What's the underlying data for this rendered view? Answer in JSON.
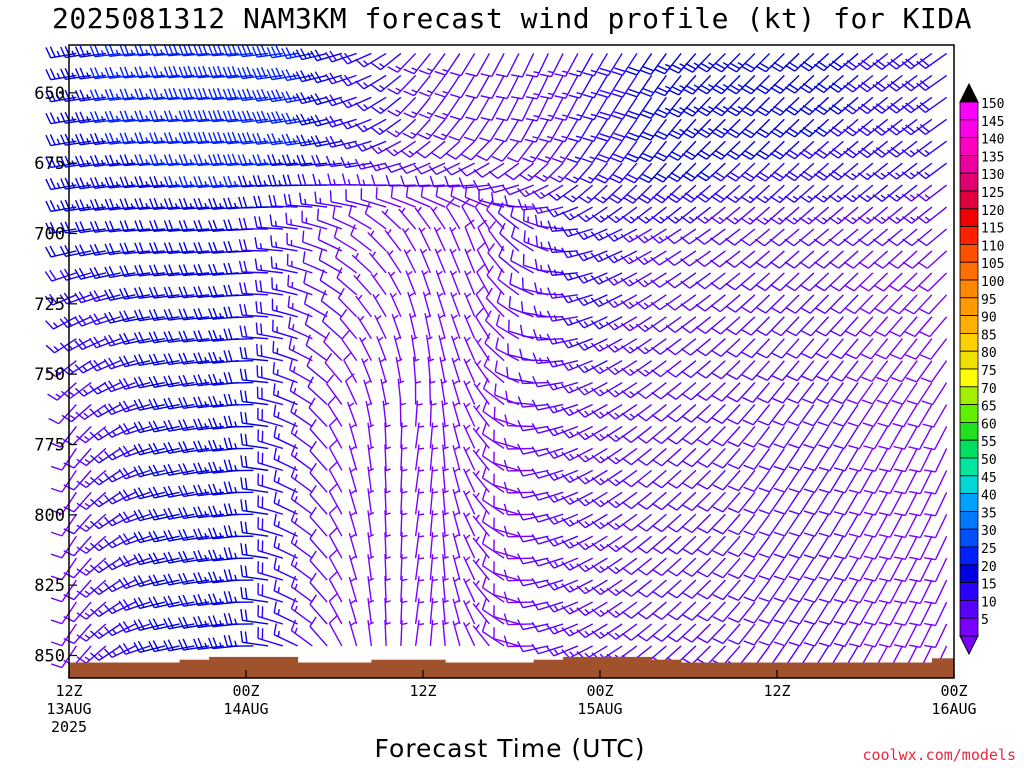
{
  "title": "2025081312 NAM3KM forecast wind profile (kt) for KIDA",
  "credit": "coolwx.com/models",
  "chart_data": {
    "type": "wind-barb profile (time-height)",
    "title": "2025081312 NAM3KM forecast wind profile (kt) for KIDA",
    "xlabel": "Forecast Time (UTC)",
    "ylabel": "",
    "x_ticks": [
      {
        "hour": 0,
        "lines": [
          "12Z",
          "13AUG",
          "2025"
        ]
      },
      {
        "hour": 12,
        "lines": [
          "00Z",
          "14AUG"
        ]
      },
      {
        "hour": 24,
        "lines": [
          "12Z"
        ]
      },
      {
        "hour": 36,
        "lines": [
          "00Z",
          "15AUG"
        ]
      },
      {
        "hour": 48,
        "lines": [
          "12Z"
        ]
      },
      {
        "hour": 60,
        "lines": [
          "00Z",
          "16AUG"
        ]
      }
    ],
    "xlim_hours": [
      0,
      60
    ],
    "y_ticks": [
      650,
      675,
      700,
      725,
      750,
      775,
      800,
      825,
      850
    ],
    "ylim_hpa": [
      633,
      858
    ],
    "grid": false,
    "colorbar": {
      "labels": [
        "5",
        "10",
        "15",
        "20",
        "25",
        "30",
        "35",
        "40",
        "45",
        "50",
        "55",
        "60",
        "65",
        "70",
        "75",
        "80",
        "85",
        "90",
        "95",
        "100",
        "105",
        "110",
        "115",
        "120",
        "125",
        "130",
        "135",
        "140",
        "145",
        "150"
      ],
      "colors": [
        "#7a00ff",
        "#5a00ff",
        "#2a00ff",
        "#0000e0",
        "#0020ff",
        "#0050ff",
        "#0078ff",
        "#00a0ff",
        "#00d8d8",
        "#00e8a0",
        "#00e060",
        "#20e020",
        "#60f000",
        "#a0f000",
        "#ffff00",
        "#f0e000",
        "#ffd000",
        "#ffb000",
        "#ff9a00",
        "#ff8800",
        "#ff7000",
        "#ff5000",
        "#ff2000",
        "#f00000",
        "#e00040",
        "#e00070",
        "#ec00a0",
        "#ff00c0",
        "#ff00e8",
        "#ff00ff"
      ]
    },
    "terrain_color": "#a0522d",
    "terrain_top_hpa": [
      {
        "from_hour": 0,
        "to_hour": 7.5,
        "p": 852.5
      },
      {
        "from_hour": 7.5,
        "to_hour": 9.5,
        "p": 851.5
      },
      {
        "from_hour": 9.5,
        "to_hour": 15.5,
        "p": 850.5
      },
      {
        "from_hour": 15.5,
        "to_hour": 20.5,
        "p": 852.5
      },
      {
        "from_hour": 20.5,
        "to_hour": 25.5,
        "p": 851.5
      },
      {
        "from_hour": 25.5,
        "to_hour": 31.5,
        "p": 852.5
      },
      {
        "from_hour": 31.5,
        "to_hour": 33.5,
        "p": 851.5
      },
      {
        "from_hour": 33.5,
        "to_hour": 39.5,
        "p": 850.5
      },
      {
        "from_hour": 39.5,
        "to_hour": 41.5,
        "p": 851.5
      },
      {
        "from_hour": 41.5,
        "to_hour": 58.5,
        "p": 852.5
      },
      {
        "from_hour": 58.5,
        "to_hour": 60,
        "p": 851.0
      }
    ],
    "wind_regimes_hours": [
      0,
      6,
      12,
      16,
      20,
      24,
      28,
      32,
      36,
      40,
      44,
      48,
      54,
      60
    ],
    "wind_speed_kt_by_regime": {
      "upper_levels_630_700": [
        24,
        26,
        30,
        28,
        18,
        14,
        12,
        12,
        16,
        22,
        24,
        22,
        20,
        18
      ],
      "mid_levels_700_775": [
        22,
        22,
        22,
        14,
        8,
        6,
        8,
        12,
        18,
        14,
        10,
        10,
        10,
        10
      ],
      "low_levels_775_850": [
        8,
        20,
        24,
        16,
        6,
        4,
        6,
        10,
        14,
        12,
        12,
        12,
        10,
        8
      ]
    },
    "wind_dir_deg_by_regime": {
      "upper_levels_630_700": [
        260,
        265,
        265,
        260,
        250,
        220,
        210,
        205,
        210,
        215,
        225,
        225,
        230,
        235
      ],
      "mid_levels_700_775": [
        260,
        265,
        265,
        280,
        300,
        330,
        340,
        300,
        250,
        240,
        235,
        230,
        230,
        230
      ],
      "low_levels_775_850": [
        210,
        255,
        265,
        300,
        350,
        10,
        330,
        260,
        240,
        230,
        225,
        215,
        210,
        205
      ]
    }
  }
}
